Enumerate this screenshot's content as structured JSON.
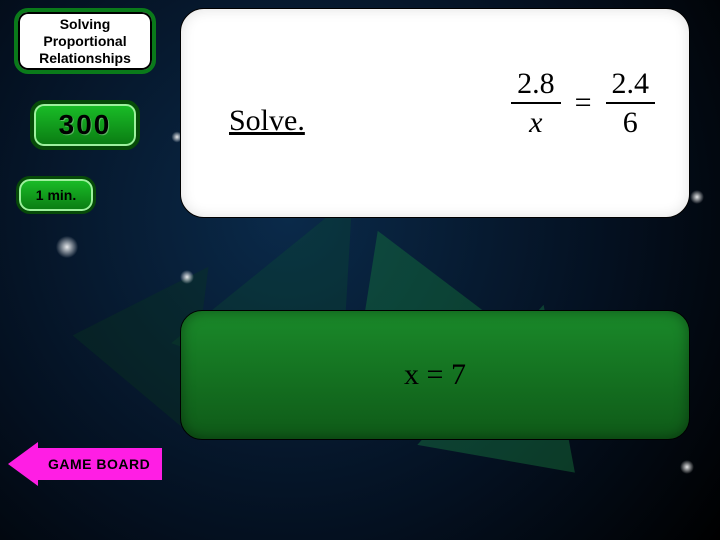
{
  "category": {
    "label": "Solving Proportional Relationships"
  },
  "points": {
    "value": "300"
  },
  "timer": {
    "label": "1 min."
  },
  "question": {
    "prompt": "Solve.",
    "equation": {
      "left": {
        "num": "2.8",
        "den": "x",
        "den_italic": true
      },
      "right": {
        "num": "2.4",
        "den": "6",
        "den_italic": false
      }
    }
  },
  "answer": {
    "text": "x = 7"
  },
  "nav": {
    "gameboard": "GAME BOARD"
  },
  "colors": {
    "badge_green": "#1abf28",
    "badge_green_dark": "#0a7a12",
    "badge_border": "#064a08",
    "answer_green": "#1a8a2a",
    "answer_green_dark": "#0f5a18",
    "magenta": "#ff1ee4",
    "white": "#ffffff",
    "black": "#000000"
  }
}
